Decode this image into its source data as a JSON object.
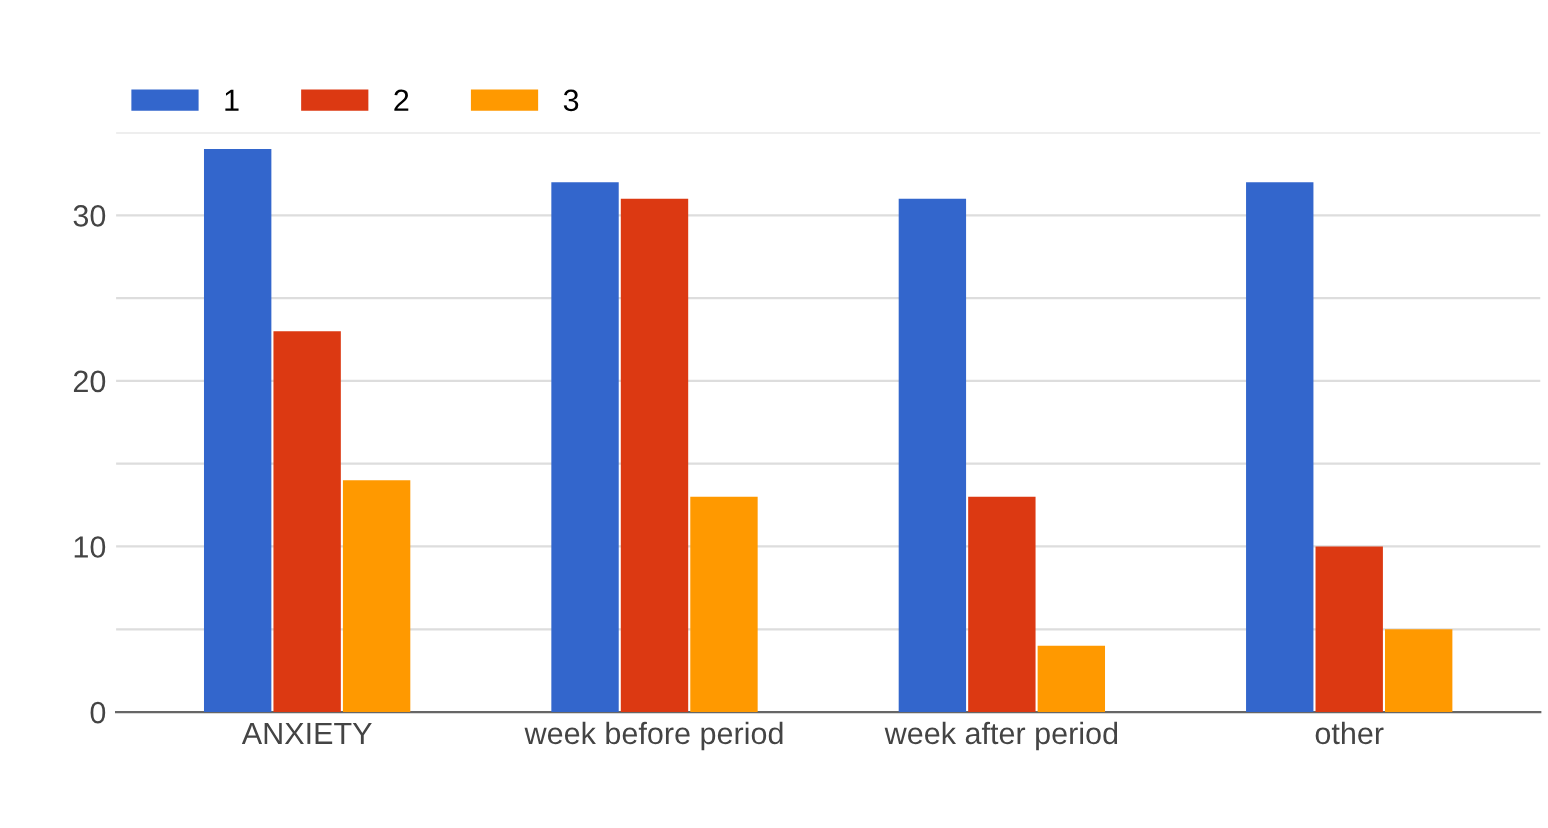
{
  "chart_data": {
    "type": "bar",
    "categories": [
      "ANXIETY",
      "week before period",
      "week after period",
      "other"
    ],
    "series": [
      {
        "name": "1",
        "color": "#3366cc",
        "values": [
          34,
          32,
          31,
          32
        ]
      },
      {
        "name": "2",
        "color": "#dc3912",
        "values": [
          23,
          31,
          13,
          10
        ]
      },
      {
        "name": "3",
        "color": "#ff9900",
        "values": [
          14,
          13,
          4,
          5
        ]
      }
    ],
    "ylim": [
      0,
      35
    ],
    "yticks": [
      0,
      {
        "value": 5,
        "label": null
      },
      10,
      {
        "value": 15,
        "label": null
      },
      20,
      {
        "value": 25,
        "label": null
      },
      30,
      {
        "value": 35,
        "label": null
      }
    ],
    "grid": "y",
    "legend": "top left"
  }
}
